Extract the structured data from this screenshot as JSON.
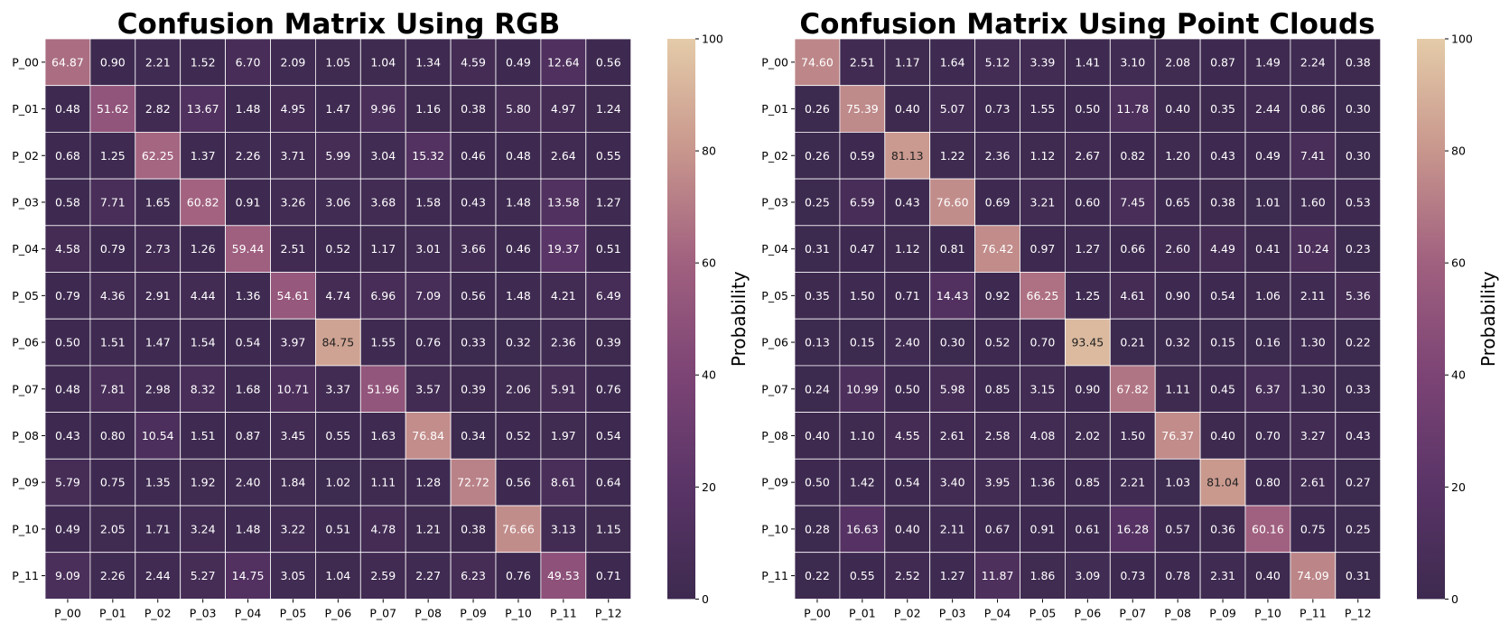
{
  "chart_data": [
    {
      "type": "heatmap",
      "title": "Confusion Matrix Using RGB",
      "x_categories": [
        "P_00",
        "P_01",
        "P_02",
        "P_03",
        "P_04",
        "P_05",
        "P_06",
        "P_07",
        "P_08",
        "P_09",
        "P_10",
        "P_11",
        "P_12"
      ],
      "y_categories": [
        "P_00",
        "P_01",
        "P_02",
        "P_03",
        "P_04",
        "P_05",
        "P_06",
        "P_07",
        "P_08",
        "P_09",
        "P_10",
        "P_11"
      ],
      "values": [
        [
          "64.87",
          "0.90",
          "2.21",
          "1.52",
          "6.70",
          "2.09",
          "1.05",
          "1.04",
          "1.34",
          "4.59",
          "0.49",
          "12.64",
          "0.56"
        ],
        [
          "0.48",
          "51.62",
          "2.82",
          "13.67",
          "1.48",
          "4.95",
          "1.47",
          "9.96",
          "1.16",
          "0.38",
          "5.80",
          "4.97",
          "1.24"
        ],
        [
          "0.68",
          "1.25",
          "62.25",
          "1.37",
          "2.26",
          "3.71",
          "5.99",
          "3.04",
          "15.32",
          "0.46",
          "0.48",
          "2.64",
          "0.55"
        ],
        [
          "0.58",
          "7.71",
          "1.65",
          "60.82",
          "0.91",
          "3.26",
          "3.06",
          "3.68",
          "1.58",
          "0.43",
          "1.48",
          "13.58",
          "1.27"
        ],
        [
          "4.58",
          "0.79",
          "2.73",
          "1.26",
          "59.44",
          "2.51",
          "0.52",
          "1.17",
          "3.01",
          "3.66",
          "0.46",
          "19.37",
          "0.51"
        ],
        [
          "0.79",
          "4.36",
          "2.91",
          "4.44",
          "1.36",
          "54.61",
          "4.74",
          "6.96",
          "7.09",
          "0.56",
          "1.48",
          "4.21",
          "6.49"
        ],
        [
          "0.50",
          "1.51",
          "1.47",
          "1.54",
          "0.54",
          "3.97",
          "84.75",
          "1.55",
          "0.76",
          "0.33",
          "0.32",
          "2.36",
          "0.39"
        ],
        [
          "0.48",
          "7.81",
          "2.98",
          "8.32",
          "1.68",
          "10.71",
          "3.37",
          "51.96",
          "3.57",
          "0.39",
          "2.06",
          "5.91",
          "0.76"
        ],
        [
          "0.43",
          "0.80",
          "10.54",
          "1.51",
          "0.87",
          "3.45",
          "0.55",
          "1.63",
          "76.84",
          "0.34",
          "0.52",
          "1.97",
          "0.54"
        ],
        [
          "5.79",
          "0.75",
          "1.35",
          "1.92",
          "2.40",
          "1.84",
          "1.02",
          "1.11",
          "1.28",
          "72.72",
          "0.56",
          "8.61",
          "0.64"
        ],
        [
          "0.49",
          "2.05",
          "1.71",
          "3.24",
          "1.48",
          "3.22",
          "0.51",
          "4.78",
          "1.21",
          "0.38",
          "76.66",
          "3.13",
          "1.15"
        ],
        [
          "9.09",
          "2.26",
          "2.44",
          "5.27",
          "14.75",
          "3.05",
          "1.04",
          "2.59",
          "2.27",
          "6.23",
          "0.76",
          "49.53",
          "0.71"
        ]
      ],
      "colorbar": {
        "label": "Probability",
        "range": [
          0,
          100
        ],
        "ticks": [
          "0",
          "20",
          "40",
          "60",
          "80",
          "100"
        ]
      }
    },
    {
      "type": "heatmap",
      "title": "Confusion Matrix Using Point Clouds",
      "x_categories": [
        "P_00",
        "P_01",
        "P_02",
        "P_03",
        "P_04",
        "P_05",
        "P_06",
        "P_07",
        "P_08",
        "P_09",
        "P_10",
        "P_11",
        "P_12"
      ],
      "y_categories": [
        "P_00",
        "P_01",
        "P_02",
        "P_03",
        "P_04",
        "P_05",
        "P_06",
        "P_07",
        "P_08",
        "P_09",
        "P_10",
        "P_11"
      ],
      "values": [
        [
          "74.60",
          "2.51",
          "1.17",
          "1.64",
          "5.12",
          "3.39",
          "1.41",
          "3.10",
          "2.08",
          "0.87",
          "1.49",
          "2.24",
          "0.38"
        ],
        [
          "0.26",
          "75.39",
          "0.40",
          "5.07",
          "0.73",
          "1.55",
          "0.50",
          "11.78",
          "0.40",
          "0.35",
          "2.44",
          "0.86",
          "0.30"
        ],
        [
          "0.26",
          "0.59",
          "81.13",
          "1.22",
          "2.36",
          "1.12",
          "2.67",
          "0.82",
          "1.20",
          "0.43",
          "0.49",
          "7.41",
          "0.30"
        ],
        [
          "0.25",
          "6.59",
          "0.43",
          "76.60",
          "0.69",
          "3.21",
          "0.60",
          "7.45",
          "0.65",
          "0.38",
          "1.01",
          "1.60",
          "0.53"
        ],
        [
          "0.31",
          "0.47",
          "1.12",
          "0.81",
          "76.42",
          "0.97",
          "1.27",
          "0.66",
          "2.60",
          "4.49",
          "0.41",
          "10.24",
          "0.23"
        ],
        [
          "0.35",
          "1.50",
          "0.71",
          "14.43",
          "0.92",
          "66.25",
          "1.25",
          "4.61",
          "0.90",
          "0.54",
          "1.06",
          "2.11",
          "5.36"
        ],
        [
          "0.13",
          "0.15",
          "2.40",
          "0.30",
          "0.52",
          "0.70",
          "93.45",
          "0.21",
          "0.32",
          "0.15",
          "0.16",
          "1.30",
          "0.22"
        ],
        [
          "0.24",
          "10.99",
          "0.50",
          "5.98",
          "0.85",
          "3.15",
          "0.90",
          "67.82",
          "1.11",
          "0.45",
          "6.37",
          "1.30",
          "0.33"
        ],
        [
          "0.40",
          "1.10",
          "4.55",
          "2.61",
          "2.58",
          "4.08",
          "2.02",
          "1.50",
          "76.37",
          "0.40",
          "0.70",
          "3.27",
          "0.43"
        ],
        [
          "0.50",
          "1.42",
          "0.54",
          "3.40",
          "3.95",
          "1.36",
          "0.85",
          "2.21",
          "1.03",
          "81.04",
          "0.80",
          "2.61",
          "0.27"
        ],
        [
          "0.28",
          "16.63",
          "0.40",
          "2.11",
          "0.67",
          "0.91",
          "0.61",
          "16.28",
          "0.57",
          "0.36",
          "60.16",
          "0.75",
          "0.25"
        ],
        [
          "0.22",
          "0.55",
          "2.52",
          "1.27",
          "11.87",
          "1.86",
          "3.09",
          "0.73",
          "0.78",
          "2.31",
          "0.40",
          "74.09",
          "0.31"
        ]
      ],
      "colorbar": {
        "label": "Probability",
        "range": [
          0,
          100
        ],
        "ticks": [
          "0",
          "20",
          "40",
          "60",
          "80",
          "100"
        ]
      }
    }
  ],
  "colormap": [
    "#3d2a4f",
    "#5a3467",
    "#7c4475",
    "#a0607f",
    "#c8968d",
    "#e4cba8"
  ]
}
